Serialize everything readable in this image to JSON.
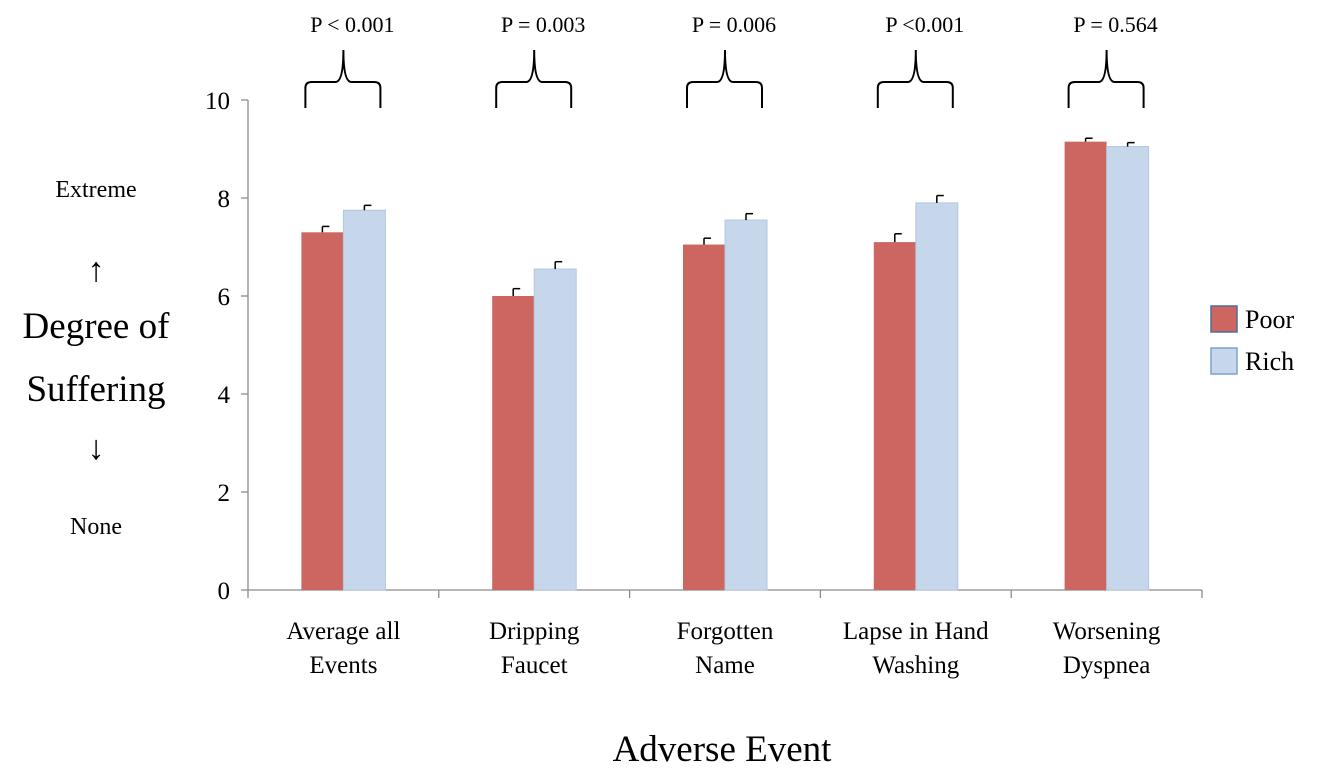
{
  "chart_data": {
    "type": "bar",
    "title": "",
    "xlabel": "Adverse Event",
    "ylabel": [
      "Degree of",
      "Suffering"
    ],
    "y_scale_top": "Extreme",
    "y_scale_bottom": "None",
    "y_arrow_up": "↑",
    "y_arrow_down": "↓",
    "ylim": [
      0,
      10
    ],
    "yticks": [
      "0",
      "2",
      "4",
      "6",
      "8",
      "10"
    ],
    "categories": [
      [
        "Average all",
        "Events"
      ],
      [
        "Dripping",
        "Faucet"
      ],
      [
        "Forgotten",
        "Name"
      ],
      [
        "Lapse in Hand",
        "Washing"
      ],
      [
        "Worsening",
        "Dyspnea"
      ]
    ],
    "series": [
      {
        "name": "Poor",
        "color": "#cd6660",
        "values": [
          7.3,
          6.0,
          7.05,
          7.1,
          9.15
        ],
        "errors": [
          0.12,
          0.15,
          0.13,
          0.17,
          0.07
        ]
      },
      {
        "name": "Rich",
        "color": "#c6d7eb",
        "values": [
          7.75,
          6.55,
          7.55,
          7.9,
          9.05
        ],
        "errors": [
          0.1,
          0.15,
          0.13,
          0.15,
          0.08
        ]
      }
    ],
    "annotations": [
      "P < 0.001",
      "P = 0.003",
      "P = 0.006",
      "P <0.001",
      "P = 0.564"
    ],
    "legend": "right",
    "grid": false
  }
}
